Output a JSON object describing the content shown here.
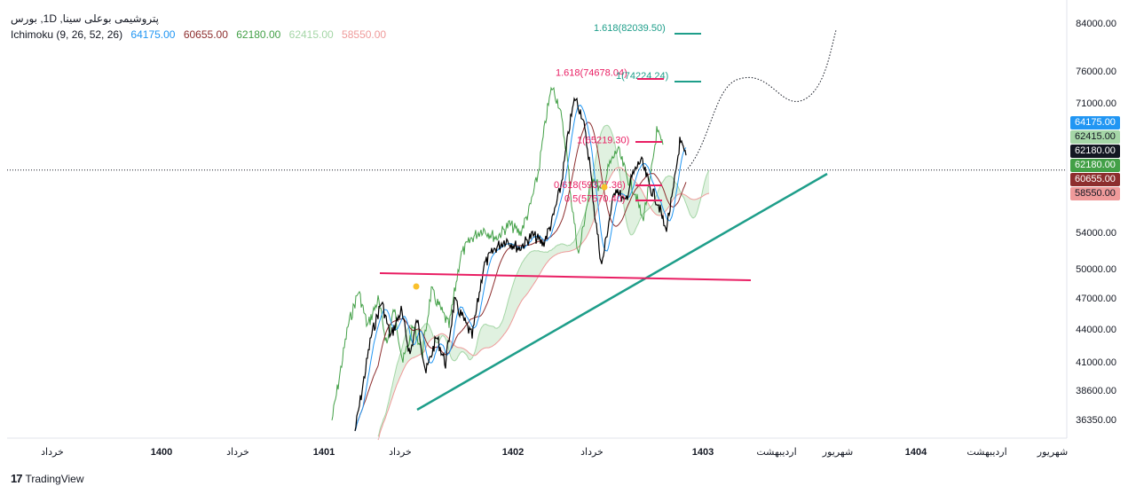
{
  "legend": {
    "symbol": "پتروشیمی بوعلی سینا, 1D, بورس",
    "indicator": "Ichimoku (9, 26, 52, 26)",
    "values": [
      {
        "text": "64175.00",
        "color": "#2196f3"
      },
      {
        "text": "60655.00",
        "color": "#8d2e2e"
      },
      {
        "text": "62180.00",
        "color": "#43a047"
      },
      {
        "text": "62415.00",
        "color": "#a5d6a7"
      },
      {
        "text": "58550.00",
        "color": "#ef9a9a"
      }
    ]
  },
  "footer": {
    "logo": "17",
    "brand": "TradingView"
  },
  "chart_data": {
    "type": "line",
    "y_ticks": [
      84000,
      76000,
      71000,
      54000,
      50000,
      47000,
      44000,
      41000,
      38600,
      36350
    ],
    "y_tick_labels": [
      "84000.00",
      "76000.00",
      "71000.00",
      "54000.00",
      "50000.00",
      "47000.00",
      "44000.00",
      "41000.00",
      "38600.00",
      "36350.00"
    ],
    "x_tick_labels": [
      "خرداد",
      "1400",
      "خرداد",
      "1401",
      "خرداد",
      "1402",
      "خرداد",
      "1403",
      "اردیبهشت",
      "شهریور",
      "1404",
      "اردیبهشت",
      "شهریور"
    ],
    "price_badges": [
      {
        "text": "64175.00",
        "value": 64175,
        "color": "#2196f3"
      },
      {
        "text": "62415.00",
        "value": 62415,
        "color": "#a5d6a7"
      },
      {
        "text": "62180.00",
        "value": 62180,
        "color": "#131722"
      },
      {
        "text": "62180.00",
        "value": 62180,
        "color": "#43a047"
      },
      {
        "text": "60655.00",
        "value": 60655,
        "color": "#8d2e2e"
      },
      {
        "text": "58550.00",
        "value": 58550,
        "color": "#ef9a9a"
      }
    ],
    "fib_labels": [
      {
        "text": "1.618(82039.50)",
        "value": 82039.5,
        "color": "#1e9e8a"
      },
      {
        "text": "1.618(74678.04)",
        "value": 74678.04,
        "color": "#e91e63"
      },
      {
        "text": "1(74224.24)",
        "value": 74224.24,
        "color": "#1e9e8a"
      },
      {
        "text": "1(65219.30)",
        "value": 65219.3,
        "color": "#e91e63"
      },
      {
        "text": "0.618(59377.36)",
        "value": 59377.36,
        "color": "#e91e63"
      },
      {
        "text": "0.5(57570.40)",
        "value": 57570.4,
        "color": "#e91e63"
      }
    ],
    "current_price": 62180,
    "colors": {
      "price": "#000000",
      "tenkan": "#2196f3",
      "kijun": "#8d2e2e",
      "chikou": "#43a047",
      "trend": "#1e9e8a",
      "support": "#e91e63",
      "cloud_up": "#a5d6a7",
      "cloud_down": "#ef9a9a"
    }
  }
}
